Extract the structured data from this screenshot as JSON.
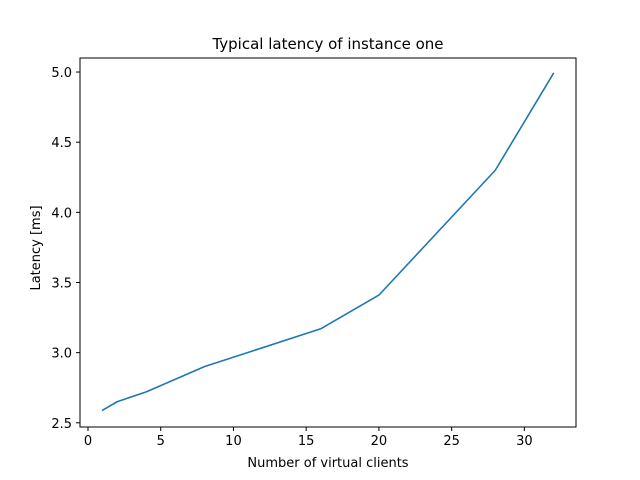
{
  "chart_data": {
    "type": "line",
    "title": "Typical latency of instance one",
    "xlabel": "Number of virtual clients",
    "ylabel": "Latency [ms]",
    "xlim": [
      -0.55,
      33.55
    ],
    "ylim": [
      2.47,
      5.1
    ],
    "xticks": [
      0,
      5,
      10,
      15,
      20,
      25,
      30
    ],
    "xtick_labels": [
      "0",
      "5",
      "10",
      "15",
      "20",
      "25",
      "30"
    ],
    "yticks": [
      2.5,
      3.0,
      3.5,
      4.0,
      4.5,
      5.0
    ],
    "ytick_labels": [
      "2.5",
      "3.0",
      "3.5",
      "4.0",
      "4.5",
      "5.0"
    ],
    "grid": false,
    "series": [
      {
        "name": "latency",
        "color": "#1f77b4",
        "x": [
          1,
          2,
          4,
          8,
          16,
          20,
          28,
          32
        ],
        "y": [
          2.59,
          2.65,
          2.72,
          2.9,
          3.17,
          3.41,
          4.3,
          4.99
        ]
      }
    ]
  }
}
